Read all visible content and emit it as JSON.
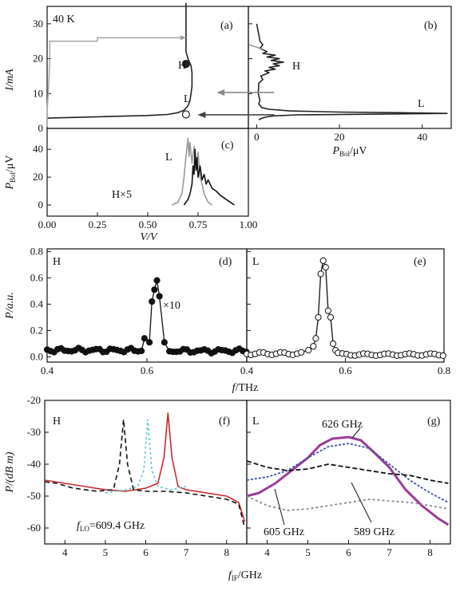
{
  "chart_data": [
    {
      "panel": "(a)",
      "type": "line",
      "corner_text": "40 K",
      "markers": [
        "H",
        "L"
      ],
      "xlim": [
        0,
        1.0
      ],
      "ylim": [
        0,
        35
      ],
      "yticks": [
        0,
        10,
        20,
        30
      ],
      "ylabel": "I/mA",
      "series": [
        {
          "color": "#222222",
          "x": [
            0.0,
            0.02,
            0.1,
            0.3,
            0.5,
            0.6,
            0.65,
            0.68,
            0.7,
            0.71,
            0.715,
            0.72,
            0.72,
            0.72,
            0.715,
            0.7,
            0.69,
            0.69,
            0.69,
            0.69,
            0.69
          ],
          "y": [
            2.9,
            3.0,
            3.1,
            3.4,
            3.7,
            4.0,
            4.5,
            5.2,
            6.5,
            8.0,
            10.0,
            12.0,
            14.0,
            16.0,
            18.0,
            20.0,
            22.0,
            25.0,
            28.0,
            32.0,
            36.0
          ]
        },
        {
          "color": "#aaaaaa",
          "x": [
            0.0,
            0.0,
            0.005,
            0.01,
            0.013,
            0.013,
            0.02,
            0.25,
            0.25,
            0.5,
            0.69
          ],
          "y": [
            0.5,
            5.0,
            10.0,
            15.0,
            20.0,
            25.0,
            25.0,
            25.0,
            26.0,
            26.0,
            26.0
          ]
        }
      ],
      "points": [
        {
          "x": 0.69,
          "y": 18.5,
          "label": "H",
          "fill": "#222222"
        },
        {
          "x": 0.69,
          "y": 4.0,
          "label": "L",
          "fill": "#ffffff"
        }
      ]
    },
    {
      "panel": "(b)",
      "type": "line",
      "markers": [
        "H",
        "L"
      ],
      "xlim": [
        -2,
        47
      ],
      "xticks": [
        0,
        20,
        40
      ],
      "xlabel": "P",
      "xlabel_sub": "Bol",
      "xlabel_unit": "/μV",
      "ylim": [
        0,
        35
      ],
      "series": [
        {
          "color": "#222222",
          "x": [
            0,
            0.5,
            0.8,
            1.5,
            0.8,
            2.5,
            1.5,
            4.5,
            2.5,
            5.5,
            3.5,
            6.5,
            4.0,
            5.5,
            3.0,
            4.5,
            2.0,
            3.0,
            1.0,
            1.5,
            0.5,
            0.4,
            0.8,
            0.5,
            1.2,
            3.0,
            8.0,
            20.0,
            35.0,
            46.0,
            30.0,
            10.0,
            4.0,
            2.0,
            1.0,
            0.5
          ],
          "y": [
            30,
            27,
            25,
            24,
            23,
            22,
            21.5,
            21,
            20.5,
            20,
            19.5,
            19,
            18.5,
            18,
            17.5,
            17,
            16.5,
            16,
            15,
            14,
            13,
            10,
            8,
            7,
            6,
            5.5,
            5,
            4.7,
            4.5,
            4.3,
            4.1,
            3.9,
            3.6,
            3.2,
            2.8,
            2.5
          ]
        }
      ],
      "arrows": [
        {
          "from_x": 0,
          "to_x": -7,
          "y": 10.3,
          "color": "#888888"
        },
        {
          "from_x": 0,
          "to_x": -14,
          "y": 3.9,
          "color": "#444444"
        }
      ]
    },
    {
      "panel": "(c)",
      "type": "line",
      "markers": [
        "L",
        "H×5"
      ],
      "xlim": [
        0,
        1.0
      ],
      "xticks": [
        0.0,
        0.25,
        0.5,
        0.75,
        1.0
      ],
      "xlabel": "V/V",
      "ylim": [
        -8,
        55
      ],
      "yticks": [
        0,
        20,
        40
      ],
      "ylabel": "P",
      "ylabel_sub": "Bol",
      "ylabel_unit": "/μV",
      "series": [
        {
          "color": "#999999",
          "x": [
            0.62,
            0.65,
            0.67,
            0.68,
            0.69,
            0.7,
            0.705,
            0.71,
            0.72,
            0.73,
            0.74,
            0.75,
            0.76,
            0.77,
            0.78,
            0.8,
            0.82
          ],
          "y": [
            0,
            2,
            8,
            20,
            35,
            48,
            35,
            45,
            30,
            42,
            25,
            38,
            20,
            15,
            8,
            2,
            0
          ]
        },
        {
          "color": "#111111",
          "x": [
            0.68,
            0.7,
            0.71,
            0.72,
            0.725,
            0.73,
            0.735,
            0.74,
            0.745,
            0.75,
            0.76,
            0.77,
            0.78,
            0.79,
            0.8,
            0.82,
            0.84,
            0.86,
            0.88,
            0.9,
            0.92,
            0.93
          ],
          "y": [
            0,
            4,
            8,
            15,
            28,
            22,
            40,
            25,
            34,
            20,
            28,
            18,
            22,
            15,
            18,
            12,
            10,
            7,
            5,
            3,
            1,
            0
          ]
        }
      ]
    },
    {
      "panel": "(d)",
      "type": "scatter",
      "corner_text": "H",
      "annotation": "×10",
      "xlim": [
        0.4,
        0.8
      ],
      "xticks": [
        0.4,
        0.6
      ],
      "ylim": [
        -0.04,
        0.82
      ],
      "yticks": [
        0.0,
        0.2,
        0.4,
        0.6,
        0.8
      ],
      "ylabel": "P/a.u.",
      "series": [
        {
          "fill": "#111111",
          "x": [
            0.595,
            0.605,
            0.61,
            0.615,
            0.62,
            0.625,
            0.635
          ],
          "y": [
            0.14,
            0.11,
            0.42,
            0.51,
            0.58,
            0.46,
            0.11
          ]
        }
      ],
      "baseline": {
        "x_start": 0.4,
        "x_end": 0.8,
        "y": 0.05
      }
    },
    {
      "panel": "(e)",
      "type": "scatter",
      "corner_text": "L",
      "xlim": [
        0.4,
        0.8
      ],
      "xticks": [
        0.4,
        0.6,
        0.8
      ],
      "ylim": [
        -0.04,
        0.82
      ],
      "series": [
        {
          "fill": "#ffffff",
          "x": [
            0.525,
            0.535,
            0.54,
            0.545,
            0.55,
            0.555,
            0.56,
            0.565,
            0.57,
            0.575,
            0.58,
            0.585
          ],
          "y": [
            0.05,
            0.08,
            0.14,
            0.3,
            0.63,
            0.73,
            0.68,
            0.35,
            0.3,
            0.1,
            0.05,
            0.03
          ]
        }
      ],
      "baseline": {
        "x_start": 0.4,
        "x_end": 0.8,
        "y": 0.025
      }
    },
    {
      "xlabel": "f",
      "xlabel_unit": "/THz"
    },
    {
      "panel": "(f)",
      "type": "line",
      "corner_text": "H",
      "annotation": "f",
      "annotation_sub": "LO",
      "annotation_tail": "=609.4 GHz",
      "xlim": [
        3.5,
        8.5
      ],
      "xticks": [
        4,
        5,
        6,
        7,
        8
      ],
      "ylim": [
        -65,
        -20
      ],
      "yticks": [
        -60,
        -50,
        -40,
        -30,
        -20
      ],
      "ylabel": "P/(dB m)",
      "series": [
        {
          "color": "#cc2a2a",
          "x": [
            3.5,
            4.0,
            4.5,
            5.0,
            5.5,
            6.0,
            6.3,
            6.45,
            6.55,
            6.65,
            6.8,
            7.0,
            7.5,
            8.0,
            8.3,
            8.45
          ],
          "y": [
            -45,
            -46,
            -47,
            -48,
            -48.5,
            -47.5,
            -46,
            -38,
            -24,
            -38,
            -47,
            -48,
            -49,
            -50,
            -52,
            -58
          ]
        },
        {
          "color": "#111111",
          "x": [
            3.5,
            3.8,
            4.2,
            4.8,
            5.2,
            5.35,
            5.45,
            5.55,
            5.7,
            6.0,
            6.5,
            7.0,
            7.5,
            8.0,
            8.3,
            8.45
          ],
          "y": [
            -45.5,
            -46,
            -47.5,
            -48.5,
            -48,
            -40,
            -26,
            -40,
            -48,
            -48.5,
            -48.5,
            -49,
            -50,
            -51,
            -52.5,
            -60
          ]
        },
        {
          "color": "#5fc6d6",
          "x": [
            5.0,
            5.5,
            5.8,
            5.95,
            6.05,
            6.15,
            6.3,
            6.6,
            7.0
          ],
          "y": [
            -49,
            -48,
            -47,
            -42,
            -26,
            -42,
            -47,
            -48,
            -47
          ]
        }
      ]
    },
    {
      "panel": "(g)",
      "type": "line",
      "corner_text": "L",
      "labels": [
        "626 GHz",
        "605 GHz",
        "589 GHz"
      ],
      "xlim": [
        3.5,
        8.5
      ],
      "xticks": [
        4,
        5,
        6,
        7,
        8
      ],
      "ylim": [
        -65,
        -20
      ],
      "series": [
        {
          "name": "626 GHz",
          "color": "#9a3c96",
          "x": [
            3.5,
            3.8,
            4.2,
            4.6,
            5.0,
            5.3,
            5.6,
            6.0,
            6.3,
            6.6,
            7.0,
            7.4,
            7.8,
            8.2,
            8.45
          ],
          "y": [
            -50,
            -49,
            -46,
            -42,
            -38,
            -34,
            -32,
            -31.5,
            -32.5,
            -36,
            -41,
            -48,
            -53,
            -57,
            -59
          ]
        },
        {
          "name": "605 GHz",
          "color": "#3a56a3",
          "x": [
            3.5,
            4.0,
            4.5,
            5.0,
            5.5,
            6.0,
            6.5,
            7.0,
            7.5,
            8.0,
            8.45
          ],
          "y": [
            -45,
            -44,
            -42,
            -38,
            -34.5,
            -33.5,
            -35,
            -40,
            -45,
            -49,
            -52
          ]
        },
        {
          "name": "589 GHz",
          "color": "#111111",
          "x": [
            3.5,
            4.0,
            4.5,
            5.0,
            5.5,
            6.0,
            6.5,
            7.0,
            7.5,
            8.0,
            8.45
          ],
          "y": [
            -39,
            -41,
            -42,
            -41.5,
            -40,
            -41,
            -42,
            -43,
            -43.5,
            -45,
            -46
          ]
        },
        {
          "color": "#888888",
          "x": [
            3.5,
            4.0,
            4.5,
            5.0,
            5.5,
            6.0,
            6.5,
            7.0,
            7.5,
            8.0,
            8.45
          ],
          "y": [
            -50,
            -53,
            -54.5,
            -54,
            -53,
            -52,
            -51,
            -51.5,
            -52,
            -53,
            -54
          ]
        }
      ]
    },
    {
      "xlabel": "f",
      "xlabel_sub": "IF",
      "xlabel_unit": "/GHz"
    }
  ]
}
